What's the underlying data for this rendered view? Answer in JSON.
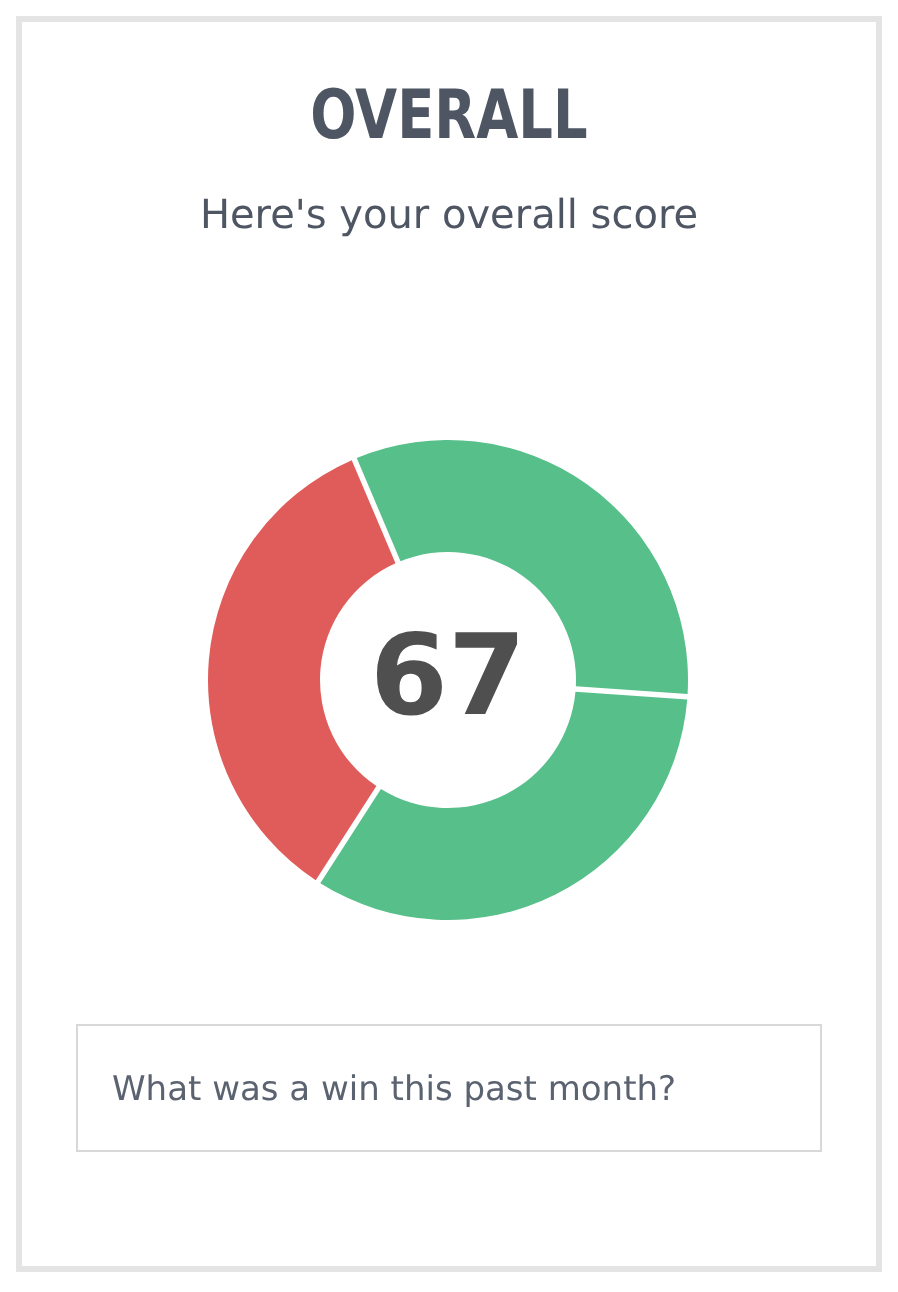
{
  "chart_data": {
    "type": "donut",
    "title": "OVERALL",
    "subtitle": "Here's your overall score",
    "categories": [
      null,
      null,
      null
    ],
    "values": [
      32.5,
      33,
      34.5
    ],
    "colors": [
      "#57bf8a",
      "#57bf8a",
      "#e05c5a"
    ],
    "annotations": [
      "67",
      "What was a win this past month?"
    ]
  }
}
